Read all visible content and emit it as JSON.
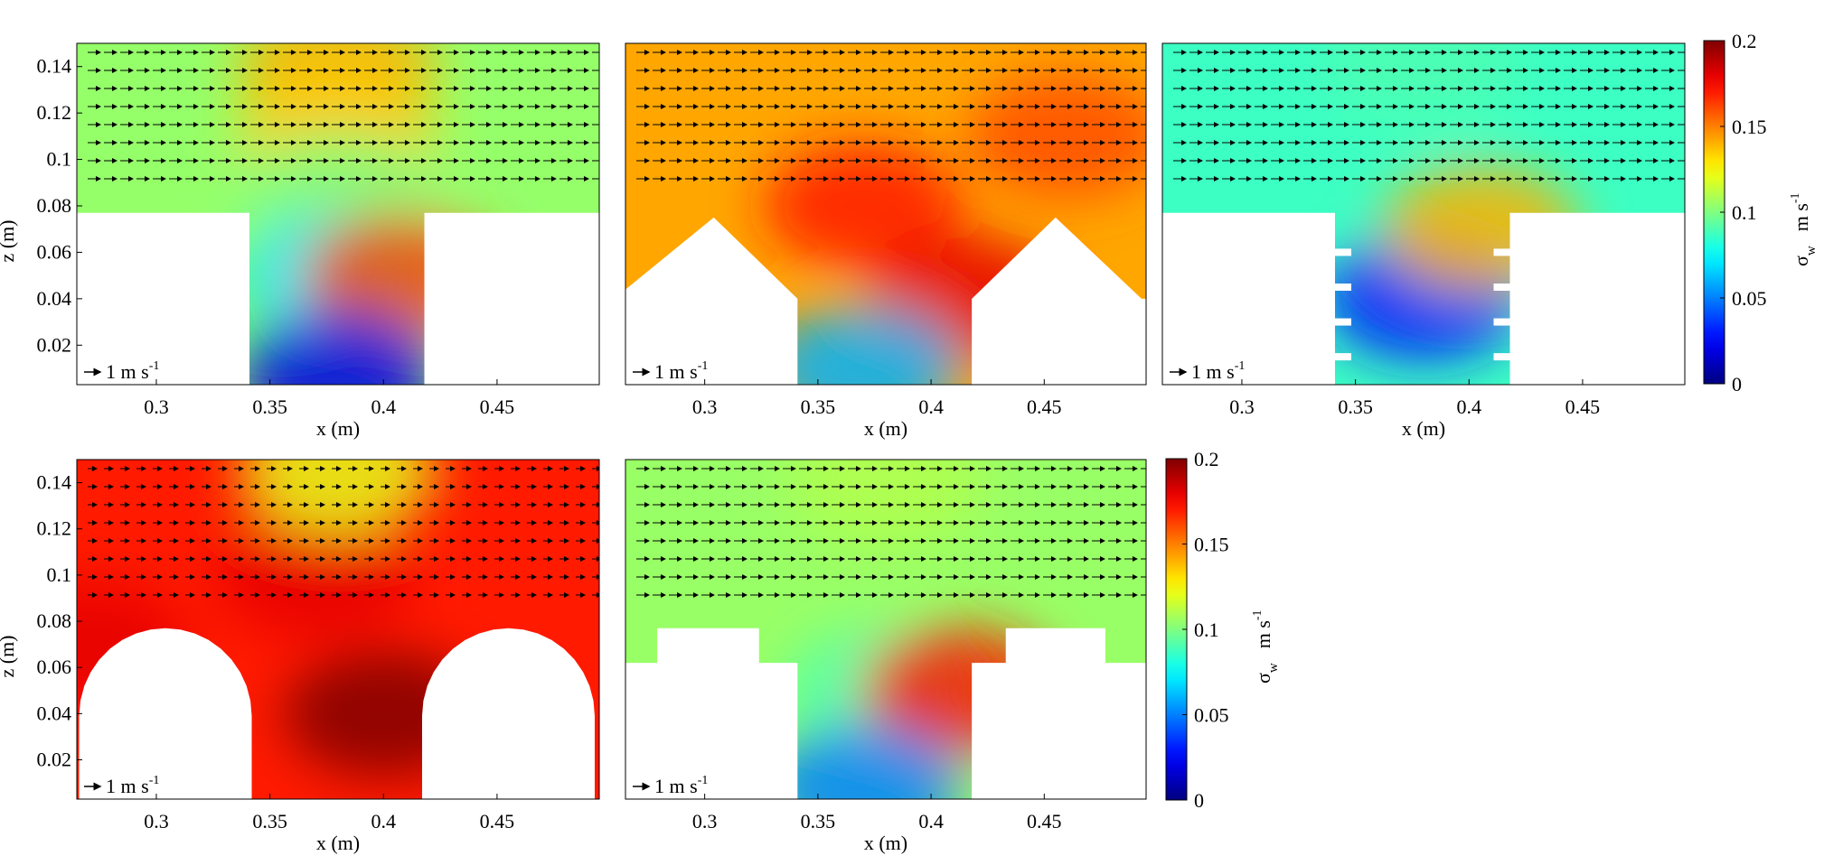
{
  "chart_data": [
    {
      "type": "heatmap",
      "geometry": "street-canyon with flat roofs",
      "xlabel": "x (m)",
      "ylabel": "z (m)",
      "xlim": [
        0.265,
        0.495
      ],
      "ylim": [
        0.003,
        0.15
      ],
      "xticks": [
        0.3,
        0.35,
        0.4,
        0.45
      ],
      "xtick_labels": [
        "0.3",
        "0.35",
        "0.4",
        "0.45"
      ],
      "yticks": [
        0.02,
        0.04,
        0.06,
        0.08,
        0.1,
        0.12,
        0.14
      ],
      "ytick_labels": [
        "0.02",
        "0.04",
        "0.06",
        "0.08",
        "0.1",
        "0.12",
        "0.14"
      ],
      "ref_vector": "1 m s",
      "ref_vector_exp": "-1",
      "field_peaks": [
        {
          "x": 0.38,
          "z": 0.14,
          "sigma_w": 0.14
        },
        {
          "x": 0.38,
          "z": 0.11,
          "sigma_w": 0.135
        },
        {
          "x": 0.38,
          "z": 0.085,
          "sigma_w": 0.1
        },
        {
          "x": 0.38,
          "z": 0.05,
          "sigma_w": 0.07
        },
        {
          "x": 0.408,
          "z": 0.05,
          "sigma_w": 0.16
        },
        {
          "x": 0.38,
          "z": 0.008,
          "sigma_w": 0.02
        }
      ]
    },
    {
      "type": "heatmap",
      "geometry": "street-canyon with pitched roofs",
      "xlabel": "x (m)",
      "ylabel": "",
      "xlim": [
        0.265,
        0.495
      ],
      "ylim": [
        0.003,
        0.15
      ],
      "xticks": [
        0.3,
        0.35,
        0.4,
        0.45
      ],
      "xtick_labels": [
        "0.3",
        "0.35",
        "0.4",
        "0.45"
      ],
      "ref_vector": "1 m s",
      "ref_vector_exp": "-1",
      "field_peaks": [
        {
          "x": 0.37,
          "z": 0.08,
          "sigma_w": 0.17
        },
        {
          "x": 0.46,
          "z": 0.11,
          "sigma_w": 0.16
        },
        {
          "x": 0.415,
          "z": 0.04,
          "sigma_w": 0.18
        },
        {
          "x": 0.37,
          "z": 0.01,
          "sigma_w": 0.06
        }
      ]
    },
    {
      "type": "heatmap",
      "geometry": "street-canyon with balconies",
      "xlabel": "x (m)",
      "ylabel": "",
      "xlim": [
        0.265,
        0.495
      ],
      "ylim": [
        0.003,
        0.15
      ],
      "xticks": [
        0.3,
        0.35,
        0.4,
        0.45
      ],
      "xtick_labels": [
        "0.3",
        "0.35",
        "0.4",
        "0.45"
      ],
      "ref_vector": "1 m s",
      "ref_vector_exp": "-1",
      "field_peaks": [
        {
          "x": 0.38,
          "z": 0.14,
          "sigma_w": 0.09
        },
        {
          "x": 0.38,
          "z": 0.04,
          "sigma_w": 0.03
        },
        {
          "x": 0.405,
          "z": 0.07,
          "sigma_w": 0.14
        }
      ]
    },
    {
      "type": "heatmap",
      "geometry": "street-canyon with round roofs",
      "xlabel": "x (m)",
      "ylabel": "z (m)",
      "xlim": [
        0.265,
        0.495
      ],
      "ylim": [
        0.003,
        0.15
      ],
      "xticks": [
        0.3,
        0.35,
        0.4,
        0.45
      ],
      "xtick_labels": [
        "0.3",
        "0.35",
        "0.4",
        "0.45"
      ],
      "yticks": [
        0.02,
        0.04,
        0.06,
        0.08,
        0.1,
        0.12,
        0.14
      ],
      "ytick_labels": [
        "0.02",
        "0.04",
        "0.06",
        "0.08",
        "0.1",
        "0.12",
        "0.14"
      ],
      "ref_vector": "1 m s",
      "ref_vector_exp": "-1",
      "field_peaks": [
        {
          "x": 0.37,
          "z": 0.1,
          "sigma_w": 0.18
        },
        {
          "x": 0.4,
          "z": 0.04,
          "sigma_w": 0.2
        },
        {
          "x": 0.27,
          "z": 0.07,
          "sigma_w": 0.18
        },
        {
          "x": 0.38,
          "z": 0.145,
          "sigma_w": 0.12
        }
      ]
    },
    {
      "type": "heatmap",
      "geometry": "street-canyon with stepped roofs",
      "xlabel": "x (m)",
      "ylabel": "",
      "xlim": [
        0.265,
        0.495
      ],
      "ylim": [
        0.003,
        0.15
      ],
      "xticks": [
        0.3,
        0.35,
        0.4,
        0.45
      ],
      "xtick_labels": [
        "0.3",
        "0.35",
        "0.4",
        "0.45"
      ],
      "ref_vector": "1 m s",
      "ref_vector_exp": "-1",
      "field_peaks": [
        {
          "x": 0.38,
          "z": 0.14,
          "sigma_w": 0.11
        },
        {
          "x": 0.38,
          "z": 0.05,
          "sigma_w": 0.09
        },
        {
          "x": 0.413,
          "z": 0.05,
          "sigma_w": 0.17
        },
        {
          "x": 0.37,
          "z": 0.008,
          "sigma_w": 0.05
        }
      ]
    }
  ],
  "colorbars": [
    {
      "type": "colorbar",
      "label": "σ",
      "label_sub": "w",
      "units": "m s",
      "units_exp": "-1",
      "lim": [
        0,
        0.2
      ],
      "ticks": [
        0,
        0.05,
        0.1,
        0.15,
        0.2
      ],
      "tick_labels": [
        "0",
        "0.05",
        "0.1",
        "0.15",
        "0.2"
      ],
      "colormap": "jet"
    },
    {
      "type": "colorbar",
      "label": "σ",
      "label_sub": "w",
      "units": "m s",
      "units_exp": "-1",
      "lim": [
        0,
        0.2
      ],
      "ticks": [
        0,
        0.05,
        0.1,
        0.15,
        0.2
      ],
      "tick_labels": [
        "0",
        "0.05",
        "0.1",
        "0.15",
        "0.2"
      ],
      "colormap": "jet"
    }
  ],
  "colors": {
    "jet": [
      "#00008f",
      "#0000ff",
      "#00ffff",
      "#ffff00",
      "#ff0000",
      "#800000"
    ],
    "axis": "#000000",
    "building": "#ffffff"
  }
}
